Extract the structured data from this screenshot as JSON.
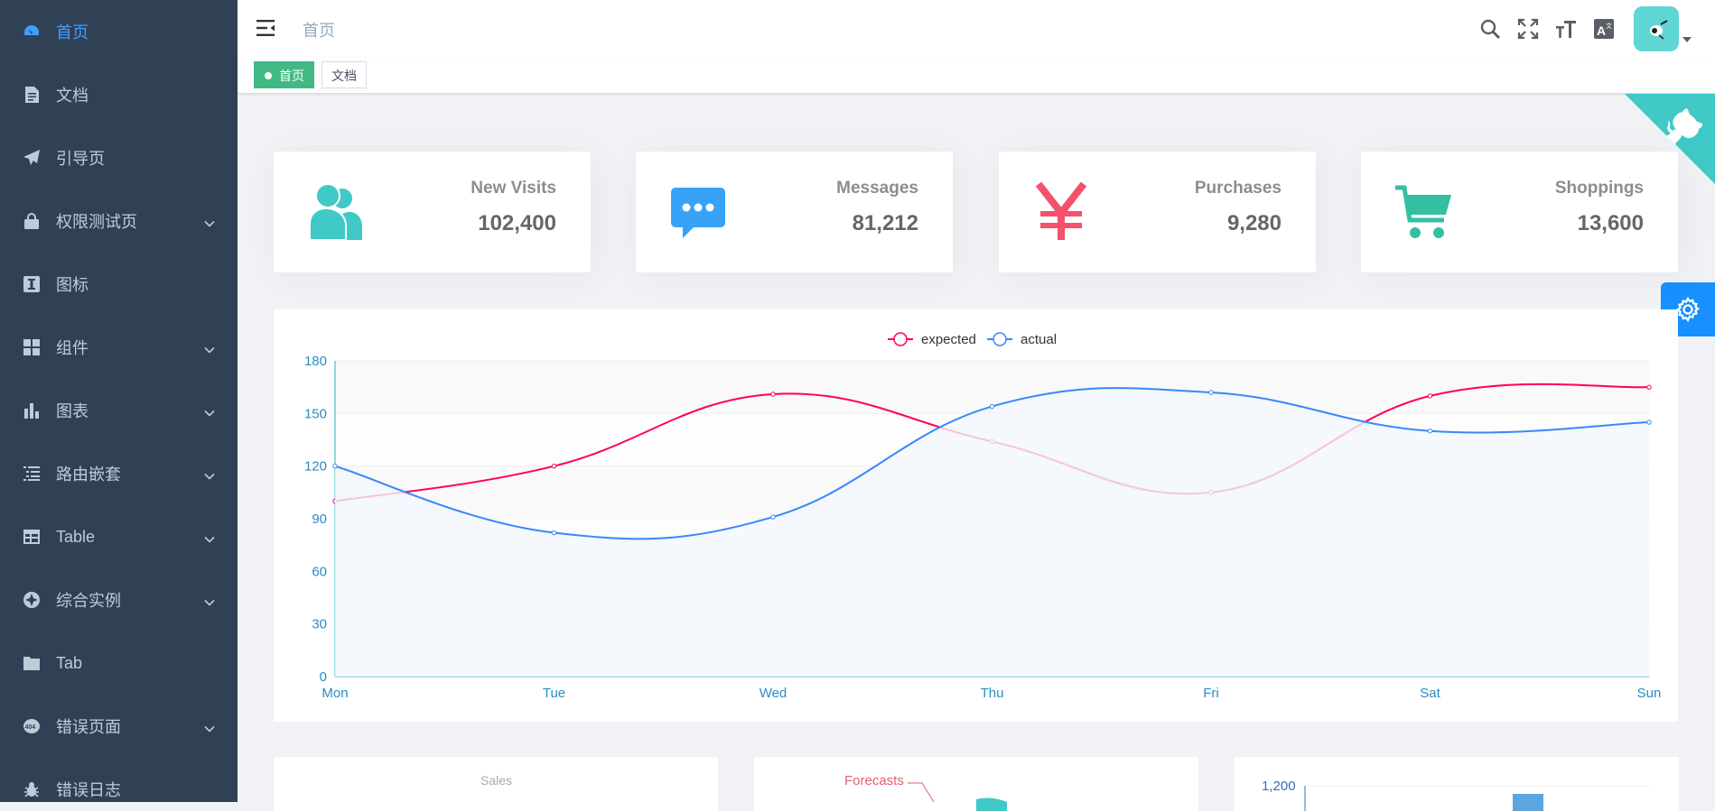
{
  "sidebar": {
    "items": [
      {
        "label": "首页",
        "icon": "dashboard-icon",
        "has_children": false,
        "active": true
      },
      {
        "label": "文档",
        "icon": "document-icon",
        "has_children": false
      },
      {
        "label": "引导页",
        "icon": "guide-icon",
        "has_children": false
      },
      {
        "label": "权限测试页",
        "icon": "lock-icon",
        "has_children": true
      },
      {
        "label": "图标",
        "icon": "icon-icon",
        "has_children": false
      },
      {
        "label": "组件",
        "icon": "component-icon",
        "has_children": true
      },
      {
        "label": "图表",
        "icon": "chart-icon",
        "has_children": true
      },
      {
        "label": "路由嵌套",
        "icon": "nested-icon",
        "has_children": true
      },
      {
        "label": "Table",
        "icon": "table-icon",
        "has_children": true
      },
      {
        "label": "综合实例",
        "icon": "example-icon",
        "has_children": true
      },
      {
        "label": "Tab",
        "icon": "tab-icon",
        "has_children": false
      },
      {
        "label": "错误页面",
        "icon": "404-icon",
        "has_children": true
      },
      {
        "label": "错误日志",
        "icon": "bug-icon",
        "has_children": false
      }
    ]
  },
  "navbar": {
    "breadcrumb": "首页",
    "icons": [
      "search-icon",
      "fullscreen-icon",
      "font-size-icon",
      "language-icon"
    ]
  },
  "tags": [
    {
      "label": "首页",
      "active": true
    },
    {
      "label": "文档",
      "active": false
    }
  ],
  "panels": [
    {
      "title": "New Visits",
      "value": "102,400",
      "icon": "peoples-icon",
      "color": "#40c9c6"
    },
    {
      "title": "Messages",
      "value": "81,212",
      "icon": "message-icon",
      "color": "#36a3f7"
    },
    {
      "title": "Purchases",
      "value": "9,280",
      "icon": "money-icon",
      "color": "#f4516c"
    },
    {
      "title": "Shoppings",
      "value": "13,600",
      "icon": "shopping-icon",
      "color": "#34bfa3"
    }
  ],
  "chart_data": {
    "type": "line",
    "title": "",
    "xlabel": "",
    "ylabel": "",
    "categories": [
      "Mon",
      "Tue",
      "Wed",
      "Thu",
      "Fri",
      "Sat",
      "Sun"
    ],
    "ylim": [
      0,
      180
    ],
    "yticks": [
      0,
      30,
      60,
      90,
      120,
      150,
      180
    ],
    "legend_position": "top-center",
    "grid": true,
    "series": [
      {
        "name": "expected",
        "values": [
          100,
          120,
          161,
          134,
          105,
          160,
          165
        ],
        "color": "#FF005A"
      },
      {
        "name": "actual",
        "values": [
          120,
          82,
          91,
          154,
          162,
          140,
          145
        ],
        "color": "#3888fa"
      }
    ]
  },
  "bottom_cards": [
    {
      "label": "Sales"
    },
    {
      "label": "Forecasts"
    },
    {
      "label": "1,200"
    }
  ],
  "colors": {
    "sidebar_bg": "#304156",
    "sidebar_text": "#bfcbd9",
    "sidebar_active": "#409eff",
    "tag_active": "#42b983",
    "settings": "#1890ff",
    "github_corner": "#40c9c6"
  }
}
